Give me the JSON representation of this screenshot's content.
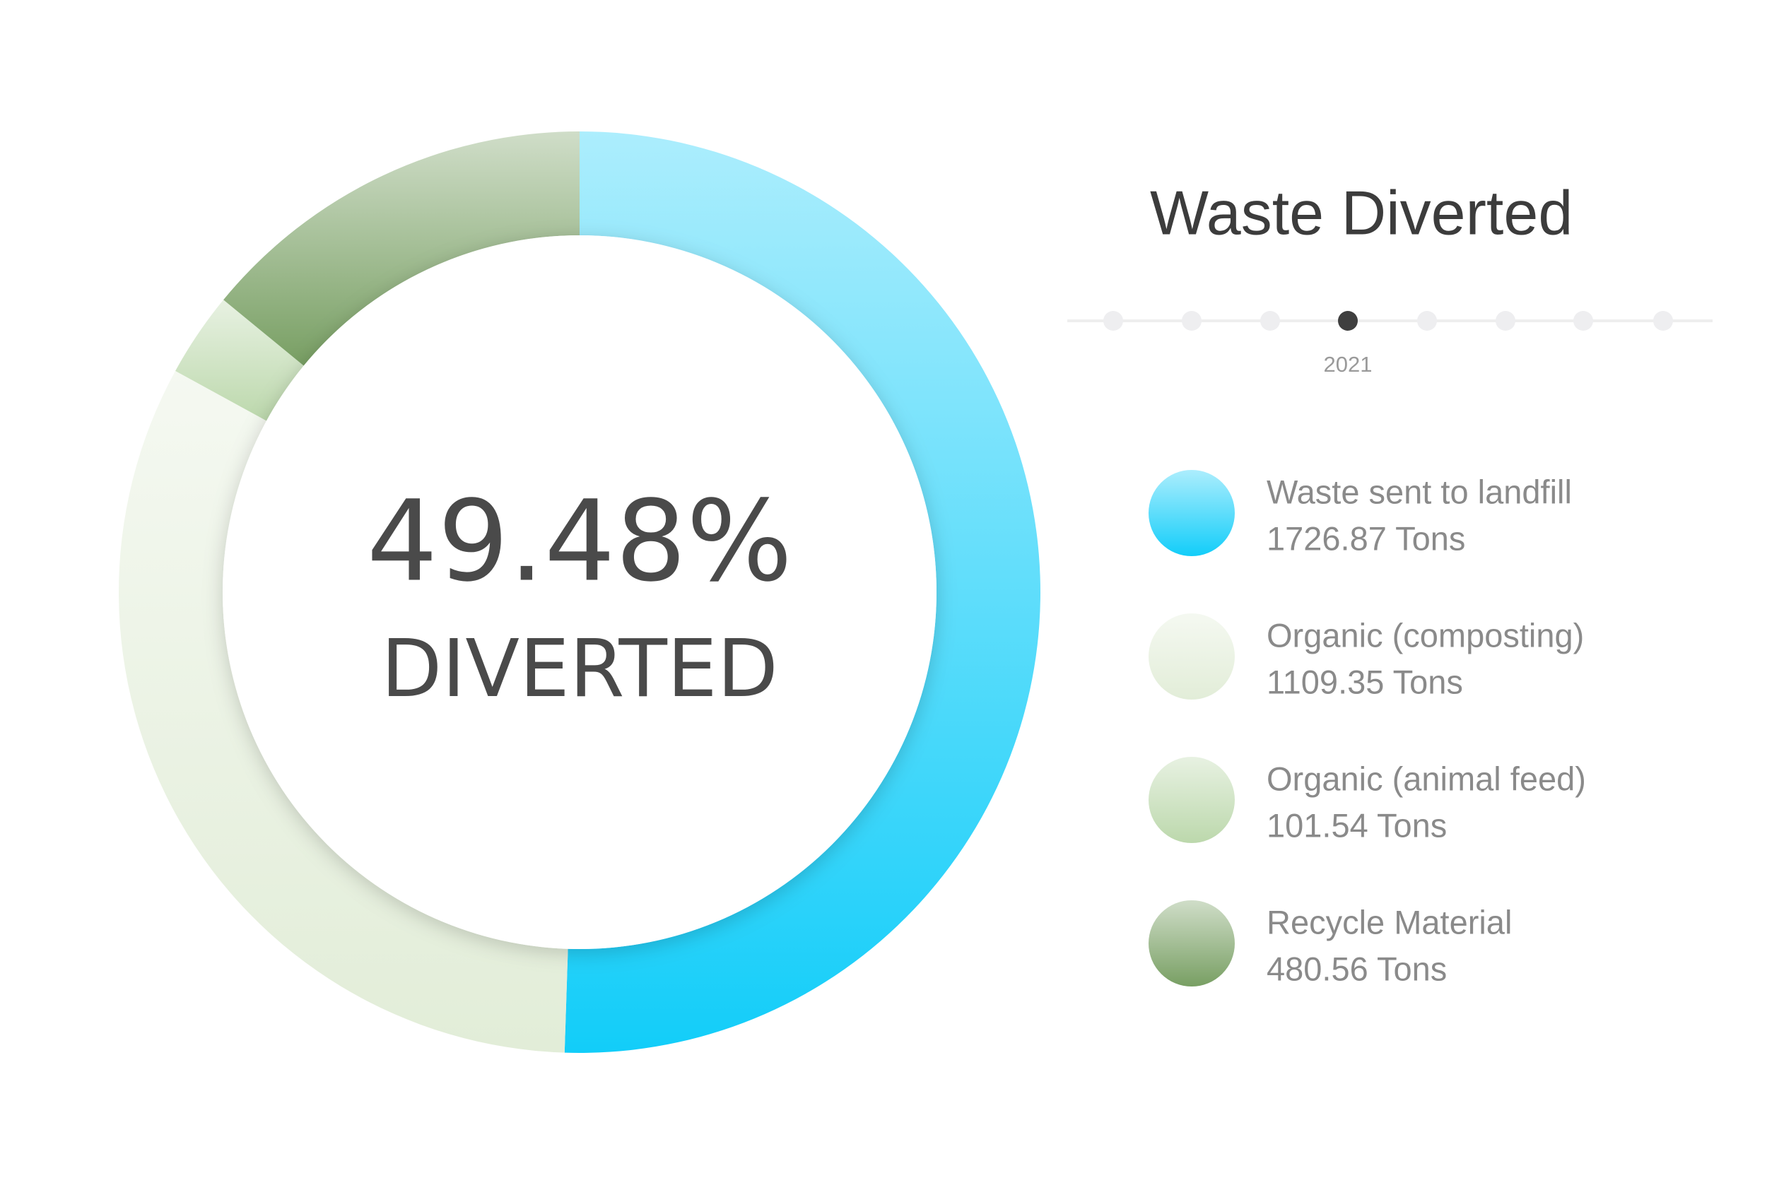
{
  "chart_data": {
    "type": "donut",
    "title": "Waste Diverted",
    "timeline_label": "2021",
    "center_value": "49.48%",
    "center_label": "DIVERTED",
    "categories": [
      "Waste sent to landfill",
      "Organic (composting)",
      "Organic (animal feed)",
      "Recycle Material"
    ],
    "values": [
      1726.87,
      1109.35,
      101.54,
      480.56
    ],
    "value_labels": [
      "1726.87 Tons",
      "1109.35 Tons",
      "101.54 Tons",
      "480.56 Tons"
    ],
    "colors": [
      "#12cdf9",
      "#e2edd8",
      "#bcd8ac",
      "#789f63"
    ]
  }
}
